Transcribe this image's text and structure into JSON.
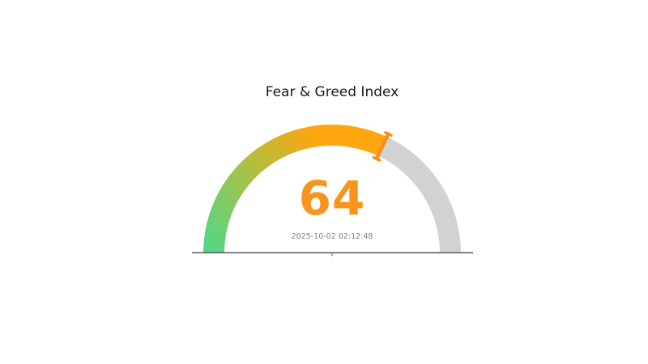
{
  "chart_data": {
    "type": "gauge",
    "title": "Fear & Greed Index",
    "value": 64,
    "min": 0,
    "max": 100,
    "timestamp": "2025-10-02 02:12:48",
    "sweep_degrees": 180,
    "legend": "none",
    "grid": false,
    "axis_ticks": [
      "center-bottom-tick"
    ],
    "colors": {
      "gradient_stops": [
        {
          "offset": 0,
          "color": "#55d687"
        },
        {
          "offset": 0.5,
          "color": "#b5bd3c"
        },
        {
          "offset": 0.85,
          "color": "#fda60f"
        },
        {
          "offset": 1,
          "color": "#fda60f"
        }
      ],
      "remainder": "#d2d2d2",
      "needle": "#fa8e1c",
      "value_text": "#f9951d",
      "timestamp_text": "#7f7f7f",
      "title_text": "#1a1a1a",
      "baseline": "#5e5e5e",
      "background": "#ffffff"
    }
  }
}
